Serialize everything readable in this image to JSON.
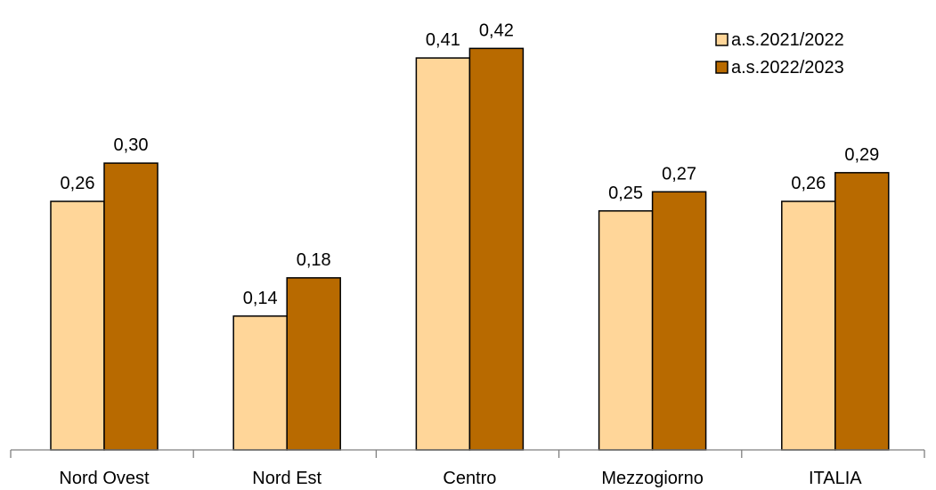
{
  "chart_data": {
    "type": "bar",
    "categories": [
      "Nord Ovest",
      "Nord Est",
      "Centro",
      "Mezzogiorno",
      "ITALIA"
    ],
    "series": [
      {
        "name": "a.s.2021/2022",
        "values": [
          0.26,
          0.14,
          0.41,
          0.25,
          0.26
        ],
        "labels": [
          "0,26",
          "0,14",
          "0,41",
          "0,25",
          "0,26"
        ],
        "color": "#FFD699"
      },
      {
        "name": "a.s.2022/2023",
        "values": [
          0.3,
          0.18,
          0.42,
          0.27,
          0.29
        ],
        "labels": [
          "0,30",
          "0,18",
          "0,42",
          "0,27",
          "0,29"
        ],
        "color": "#B86A00"
      }
    ],
    "ylim": [
      0,
      0.45
    ],
    "grid": false,
    "legend": "top-right"
  }
}
